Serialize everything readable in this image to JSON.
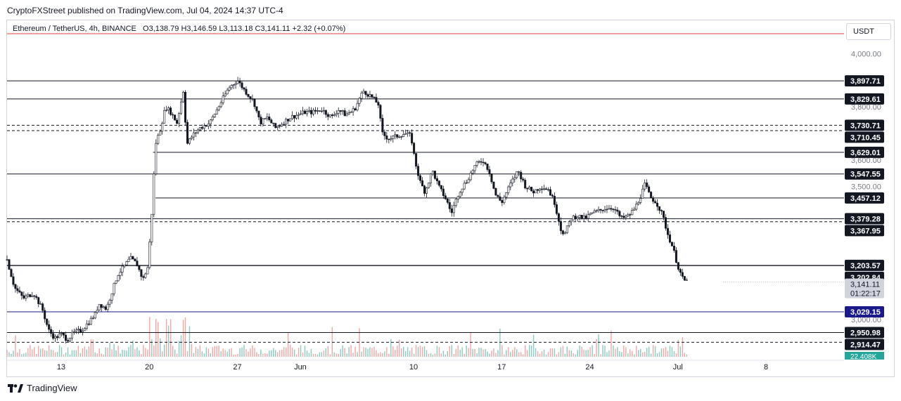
{
  "header": {
    "published": "CryptoFXStreet published on TradingView.com, Jul 04, 2024 14:37 UTC-4"
  },
  "legend": {
    "symbol": "Ethereum / TetherUS, 4h, BINANCE",
    "open": "O3,138.79",
    "high": "H3,146.59",
    "low": "L3,113.18",
    "close": "C3,141.11",
    "change": "+2.32 (+0.07%)"
  },
  "currency": "USDT",
  "brand": {
    "name": "TradingView",
    "logo_icon": "tradingview-logo-icon"
  },
  "chart_data": {
    "type": "candlestick",
    "timeframe": "4h",
    "y_range": [
      2860,
      4075
    ],
    "y_ticks": [
      {
        "value": 4000,
        "label": "4,000.00"
      },
      {
        "value": 3800,
        "label": "3,800.00"
      },
      {
        "value": 3600,
        "label": "3,600.00"
      },
      {
        "value": 3500,
        "label": "3,500.00"
      },
      {
        "value": 3000,
        "label": "3,000.00"
      }
    ],
    "x_ticks": [
      "13",
      "20",
      "27",
      "Jun",
      "10",
      "17",
      "24",
      "Jul",
      "8"
    ],
    "x_tick_days": [
      13,
      20,
      27,
      32,
      41,
      48,
      55,
      62,
      69
    ],
    "x_range_days": [
      8.7,
      75.2
    ],
    "last_candle_day": 65.6,
    "horizontal_levels": [
      {
        "value": 3897.71,
        "label": "3,897.71",
        "style": "solid",
        "from_day": 8.7
      },
      {
        "value": 3829.61,
        "label": "3,829.61",
        "style": "solid",
        "from_day": 8.7
      },
      {
        "value": 3730.71,
        "label": "3,730.71",
        "style": "dashed",
        "from_day": 8.7
      },
      {
        "value": 3710.45,
        "label": "3,710.45",
        "style": "dashed",
        "from_day": 8.7
      },
      {
        "value": 3629.01,
        "label": "3,629.01",
        "style": "solid",
        "from_day": 20.3
      },
      {
        "value": 3547.55,
        "label": "3,547.55",
        "style": "solid",
        "from_day": 8.7
      },
      {
        "value": 3457.12,
        "label": "3,457.12",
        "style": "solid",
        "from_day": 20.5
      },
      {
        "value": 3379.28,
        "label": "3,379.28",
        "style": "solid",
        "from_day": 8.7
      },
      {
        "value": 3367.95,
        "label": "3,367.95",
        "style": "dashed",
        "from_day": 8.7
      },
      {
        "value": 3203.57,
        "label": "3,203.57",
        "style": "solid",
        "from_day": 8.7
      },
      {
        "value": 3202.84,
        "label": "3,202.84",
        "style": "solid",
        "from_day": 8.7
      },
      {
        "value": 3029.15,
        "label": "3,029.15",
        "style": "solid",
        "from_day": 8.7,
        "color": "#1a1a8c"
      },
      {
        "value": 2950.98,
        "label": "2,950.98",
        "style": "solid",
        "from_day": 8.7
      },
      {
        "value": 2914.47,
        "label": "2,914.47",
        "style": "dashed",
        "from_day": 8.7
      }
    ],
    "current_price": {
      "value": 3141.11,
      "label": "3,141.11",
      "countdown": "01:22:17"
    },
    "volume_label": "22.408K",
    "price_path": [
      [
        8.7,
        3225
      ],
      [
        9.3,
        3120
      ],
      [
        10.0,
        3080
      ],
      [
        10.8,
        3100
      ],
      [
        11.5,
        3040
      ],
      [
        12.0,
        2960
      ],
      [
        12.5,
        2930
      ],
      [
        13.0,
        2945
      ],
      [
        13.5,
        2925
      ],
      [
        14.0,
        2950
      ],
      [
        14.6,
        2960
      ],
      [
        15.2,
        2990
      ],
      [
        15.7,
        3020
      ],
      [
        16.0,
        3060
      ],
      [
        16.6,
        3040
      ],
      [
        17.0,
        3100
      ],
      [
        17.5,
        3170
      ],
      [
        18.0,
        3200
      ],
      [
        18.5,
        3230
      ],
      [
        19.0,
        3210
      ],
      [
        19.5,
        3150
      ],
      [
        19.9,
        3200
      ],
      [
        20.2,
        3400
      ],
      [
        20.5,
        3660
      ],
      [
        20.9,
        3720
      ],
      [
        21.3,
        3800
      ],
      [
        21.7,
        3780
      ],
      [
        22.2,
        3740
      ],
      [
        22.7,
        3860
      ],
      [
        23.0,
        3660
      ],
      [
        23.4,
        3690
      ],
      [
        24.0,
        3720
      ],
      [
        24.8,
        3740
      ],
      [
        25.5,
        3800
      ],
      [
        26.3,
        3870
      ],
      [
        27.0,
        3900
      ],
      [
        27.6,
        3860
      ],
      [
        28.3,
        3820
      ],
      [
        28.8,
        3740
      ],
      [
        29.4,
        3760
      ],
      [
        30.0,
        3720
      ],
      [
        30.6,
        3740
      ],
      [
        31.2,
        3760
      ],
      [
        31.8,
        3770
      ],
      [
        32.4,
        3780
      ],
      [
        33.0,
        3780
      ],
      [
        33.7,
        3790
      ],
      [
        34.5,
        3760
      ],
      [
        35.0,
        3790
      ],
      [
        35.6,
        3770
      ],
      [
        36.3,
        3790
      ],
      [
        37.0,
        3860
      ],
      [
        37.6,
        3840
      ],
      [
        38.2,
        3810
      ],
      [
        38.5,
        3700
      ],
      [
        39.0,
        3680
      ],
      [
        39.7,
        3690
      ],
      [
        40.3,
        3700
      ],
      [
        40.8,
        3690
      ],
      [
        41.1,
        3600
      ],
      [
        41.5,
        3520
      ],
      [
        41.9,
        3480
      ],
      [
        42.5,
        3560
      ],
      [
        43.0,
        3500
      ],
      [
        43.6,
        3450
      ],
      [
        44.0,
        3400
      ],
      [
        44.6,
        3480
      ],
      [
        45.2,
        3520
      ],
      [
        45.9,
        3580
      ],
      [
        46.5,
        3600
      ],
      [
        47.0,
        3560
      ],
      [
        47.5,
        3470
      ],
      [
        48.0,
        3440
      ],
      [
        48.6,
        3500
      ],
      [
        49.3,
        3560
      ],
      [
        49.9,
        3500
      ],
      [
        50.5,
        3480
      ],
      [
        51.1,
        3500
      ],
      [
        51.7,
        3490
      ],
      [
        52.2,
        3440
      ],
      [
        52.7,
        3340
      ],
      [
        53.0,
        3320
      ],
      [
        53.5,
        3380
      ],
      [
        54.0,
        3390
      ],
      [
        54.6,
        3380
      ],
      [
        55.2,
        3400
      ],
      [
        55.8,
        3410
      ],
      [
        56.3,
        3420
      ],
      [
        56.9,
        3420
      ],
      [
        57.5,
        3380
      ],
      [
        58.1,
        3390
      ],
      [
        58.6,
        3420
      ],
      [
        59.0,
        3460
      ],
      [
        59.4,
        3510
      ],
      [
        59.8,
        3460
      ],
      [
        60.3,
        3440
      ],
      [
        60.8,
        3390
      ],
      [
        61.2,
        3320
      ],
      [
        61.6,
        3270
      ],
      [
        62.0,
        3200
      ],
      [
        62.4,
        3150
      ],
      [
        62.8,
        3141
      ]
    ]
  }
}
